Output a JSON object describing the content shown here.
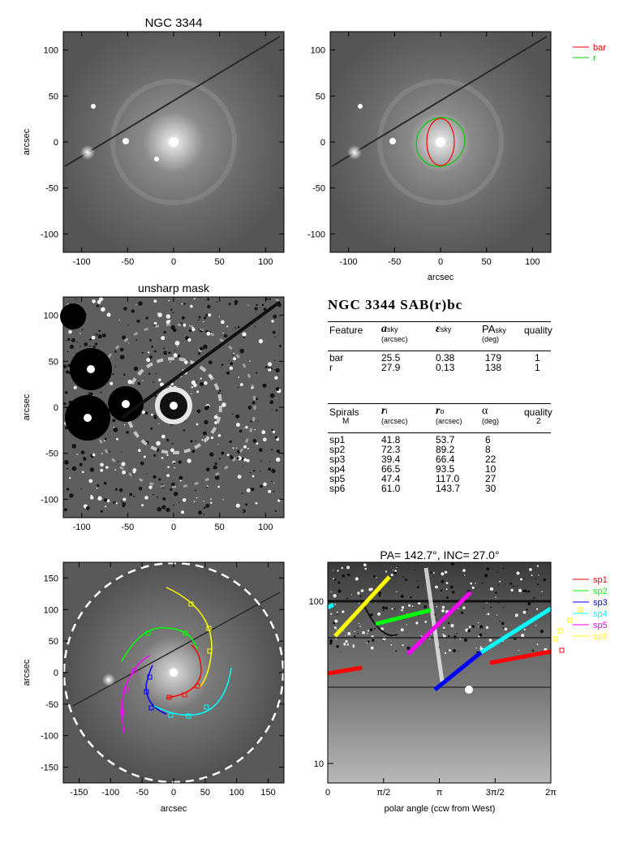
{
  "panels": {
    "top_left": {
      "title": "NGC 3344",
      "ylabel": "arcsec",
      "xticks": [
        "-100",
        "-50",
        "0",
        "50",
        "100"
      ],
      "yticks": [
        "100",
        "50",
        "0",
        "-50",
        "-100"
      ]
    },
    "top_right": {
      "xlabel": "arcsec",
      "xticks": [
        "-100",
        "-50",
        "0",
        "50",
        "100"
      ],
      "yticks": [
        "100",
        "50",
        "0",
        "-50",
        "-100"
      ],
      "legend": [
        {
          "label": "bar",
          "color": "#ff0000"
        },
        {
          "label": "r",
          "color": "#00cc00"
        }
      ]
    },
    "mid_left": {
      "title": "unsharp mask",
      "ylabel": "arcsec",
      "xticks": [
        "-100",
        "-50",
        "0",
        "50",
        "100"
      ],
      "yticks": [
        "100",
        "50",
        "0",
        "-50",
        "-100"
      ]
    },
    "bottom_left": {
      "xlabel": "arcsec",
      "ylabel": "arcsec",
      "xticks": [
        "-150",
        "-100",
        "-50",
        "0",
        "50",
        "100",
        "150"
      ],
      "yticks": [
        "150",
        "100",
        "50",
        "0",
        "-50",
        "-100",
        "-150"
      ]
    },
    "bottom_right": {
      "title": "PA= 142.7°, INC=  27.0°",
      "xlabel": "polar angle (ccw from West)",
      "xticks": [
        "0",
        "π/2",
        "π",
        "3π/2",
        "2π"
      ],
      "yticks": [
        "100",
        "10"
      ],
      "legend": [
        {
          "label": "sp1",
          "color": "#ff0000"
        },
        {
          "label": "sp2",
          "color": "#00ff00"
        },
        {
          "label": "sp3",
          "color": "#0000ff"
        },
        {
          "label": "sp4",
          "color": "#00ffff"
        },
        {
          "label": "sp5",
          "color": "#ff00ff"
        },
        {
          "label": "sp6",
          "color": "#ffff00"
        }
      ]
    }
  },
  "table": {
    "title": "NGC 3344  SAB(r)bc",
    "features": {
      "headers": {
        "feature": "Feature",
        "a": "a",
        "a_sub": "sky",
        "a_unit": "(arcsec)",
        "eps": "ε",
        "eps_sub": "sky",
        "pa": "PA",
        "pa_sub": "sky",
        "pa_unit": "(deg)",
        "quality": "quality"
      },
      "rows": [
        {
          "name": "bar",
          "a": "25.5",
          "eps": "0.38",
          "pa": "179",
          "q": "1"
        },
        {
          "name": "r",
          "a": "27.9",
          "eps": "0.13",
          "pa": "138",
          "q": "1"
        }
      ]
    },
    "spirals": {
      "headers": {
        "spirals": "Spirals",
        "m": "M",
        "ri": "r",
        "ri_sub": "i",
        "ri_unit": "(arcsec)",
        "ro": "r",
        "ro_sub": "o",
        "ro_unit": "(arcsec)",
        "alpha": "α",
        "alpha_unit": "(deg)",
        "quality": "quality",
        "quality_val": "2"
      },
      "rows": [
        {
          "name": "sp1",
          "ri": "41.8",
          "ro": "53.7",
          "alpha": "6"
        },
        {
          "name": "sp2",
          "ri": "72.3",
          "ro": "89.2",
          "alpha": "8"
        },
        {
          "name": "sp3",
          "ri": "39.4",
          "ro": "66.4",
          "alpha": "22"
        },
        {
          "name": "sp4",
          "ri": "66.5",
          "ro": "93.5",
          "alpha": "10"
        },
        {
          "name": "sp5",
          "ri": "47.4",
          "ro": "117.0",
          "alpha": "27"
        },
        {
          "name": "sp6",
          "ri": "61.0",
          "ro": "143.7",
          "alpha": "30"
        }
      ]
    }
  }
}
